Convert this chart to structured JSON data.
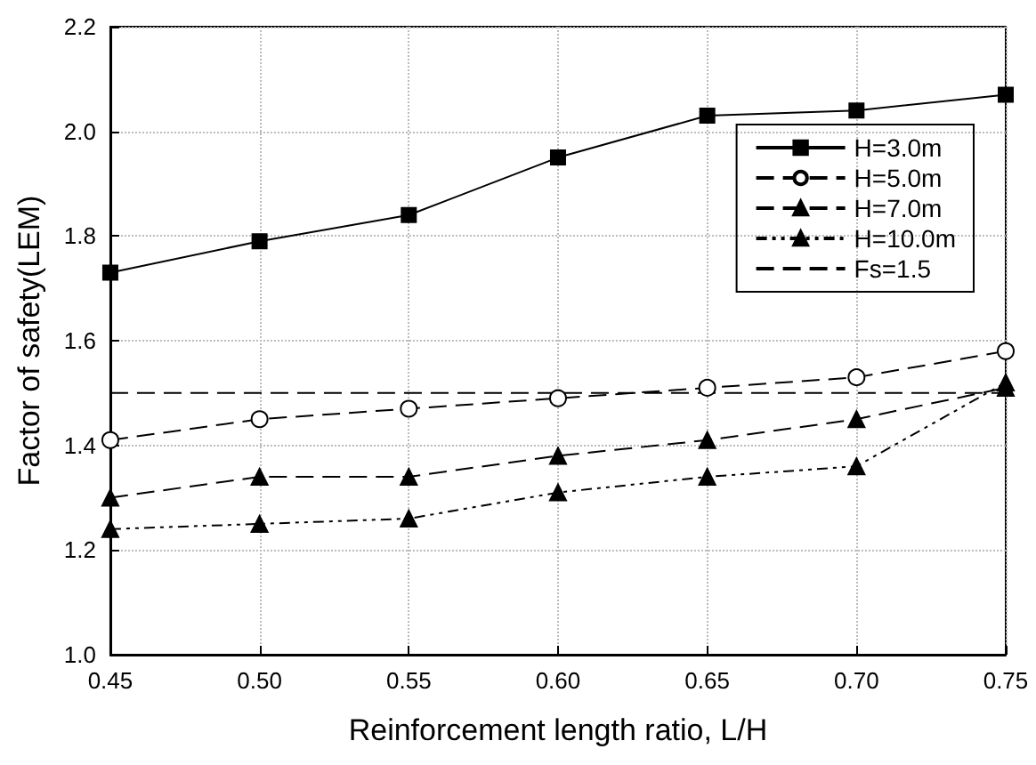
{
  "chart_data": {
    "type": "line",
    "xlabel": "Reinforcement length ratio, L/H",
    "ylabel": "Factor of safety(LEM)",
    "x": [
      0.45,
      0.5,
      0.55,
      0.6,
      0.65,
      0.7,
      0.75
    ],
    "xlim": [
      0.45,
      0.75
    ],
    "xticks": [
      {
        "value": 0.45,
        "label": "0.45"
      },
      {
        "value": 0.5,
        "label": "0.50"
      },
      {
        "value": 0.55,
        "label": "0.55"
      },
      {
        "value": 0.6,
        "label": "0.60"
      },
      {
        "value": 0.65,
        "label": "0.65"
      },
      {
        "value": 0.7,
        "label": "0.70"
      },
      {
        "value": 0.75,
        "label": "0.75"
      }
    ],
    "ylim": [
      1.0,
      2.2
    ],
    "yticks": [
      {
        "value": 1.0,
        "label": "1.0"
      },
      {
        "value": 1.2,
        "label": "1.2"
      },
      {
        "value": 1.4,
        "label": "1.4"
      },
      {
        "value": 1.6,
        "label": "1.6"
      },
      {
        "value": 1.8,
        "label": "1.8"
      },
      {
        "value": 2.0,
        "label": "2.0"
      },
      {
        "value": 2.2,
        "label": "2.2"
      }
    ],
    "grid": true,
    "legend": "top right",
    "series": [
      {
        "name": "H=3.0m",
        "color": "#000000",
        "marker": "square",
        "line_style": "solid",
        "values": [
          1.73,
          1.79,
          1.84,
          1.95,
          2.03,
          2.04,
          2.07
        ]
      },
      {
        "name": "H=5.0m",
        "color": "#000000",
        "marker": "circle",
        "line_style": "dashed",
        "values": [
          1.41,
          1.45,
          1.47,
          1.49,
          1.51,
          1.53,
          1.58
        ]
      },
      {
        "name": "H=7.0m",
        "color": "#000000",
        "marker": "triangle",
        "line_style": "dashed",
        "values": [
          1.3,
          1.34,
          1.34,
          1.38,
          1.41,
          1.45,
          1.51
        ]
      },
      {
        "name": "H=10.0m",
        "color": "#000000",
        "marker": "triangle",
        "line_style": "dotted",
        "values": [
          1.24,
          1.25,
          1.26,
          1.31,
          1.34,
          1.36,
          1.52
        ]
      },
      {
        "name": "Fs=1.5",
        "color": "#000000",
        "marker": "none",
        "line_style": "dashed",
        "x": [
          0.45,
          0.75
        ],
        "values": [
          1.5,
          1.5
        ]
      }
    ]
  }
}
